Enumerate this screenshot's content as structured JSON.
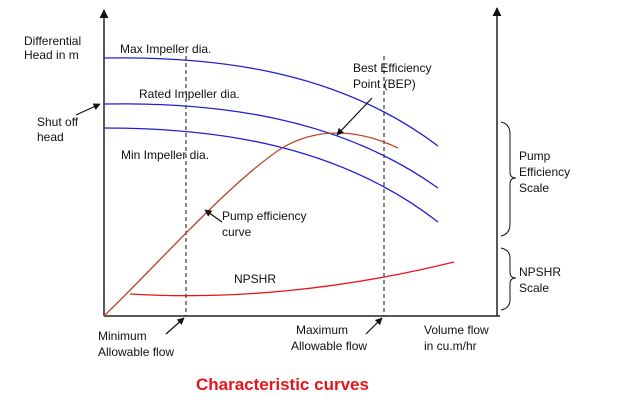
{
  "title": "Characteristic curves",
  "colors": {
    "head_curves": "#1f1fd6",
    "efficiency_curve": "#b5482a",
    "npshr_curve": "#e8141b",
    "axes": "#222222",
    "title": "#e8141b"
  },
  "labels": {
    "y_axis_line1": "Differential",
    "y_axis_line2": "Head in m",
    "shut_off_line1": "Shut off",
    "shut_off_line2": "head",
    "max_impeller": "Max Impeller dia.",
    "rated_impeller": "Rated Impeller dia.",
    "min_impeller": "Min Impeller dia.",
    "bep_line1": "Best Efficiency",
    "bep_line2": "Point (BEP)",
    "pump_eff_line1": "Pump efficiency",
    "pump_eff_line2": "curve",
    "npshr": "NPSHR",
    "eff_scale_line1": "Pump",
    "eff_scale_line2": "Efficiency",
    "eff_scale_line3": "Scale",
    "npshr_scale_line1": "NPSHR",
    "npshr_scale_line2": "Scale",
    "min_flow_line1": "Minimum",
    "min_flow_line2": "Allowable flow",
    "max_flow_line1": "Maximum",
    "max_flow_line2": "Allowable flow",
    "x_axis_line1": "Volume flow",
    "x_axis_line2": "in cu.m/hr"
  }
}
